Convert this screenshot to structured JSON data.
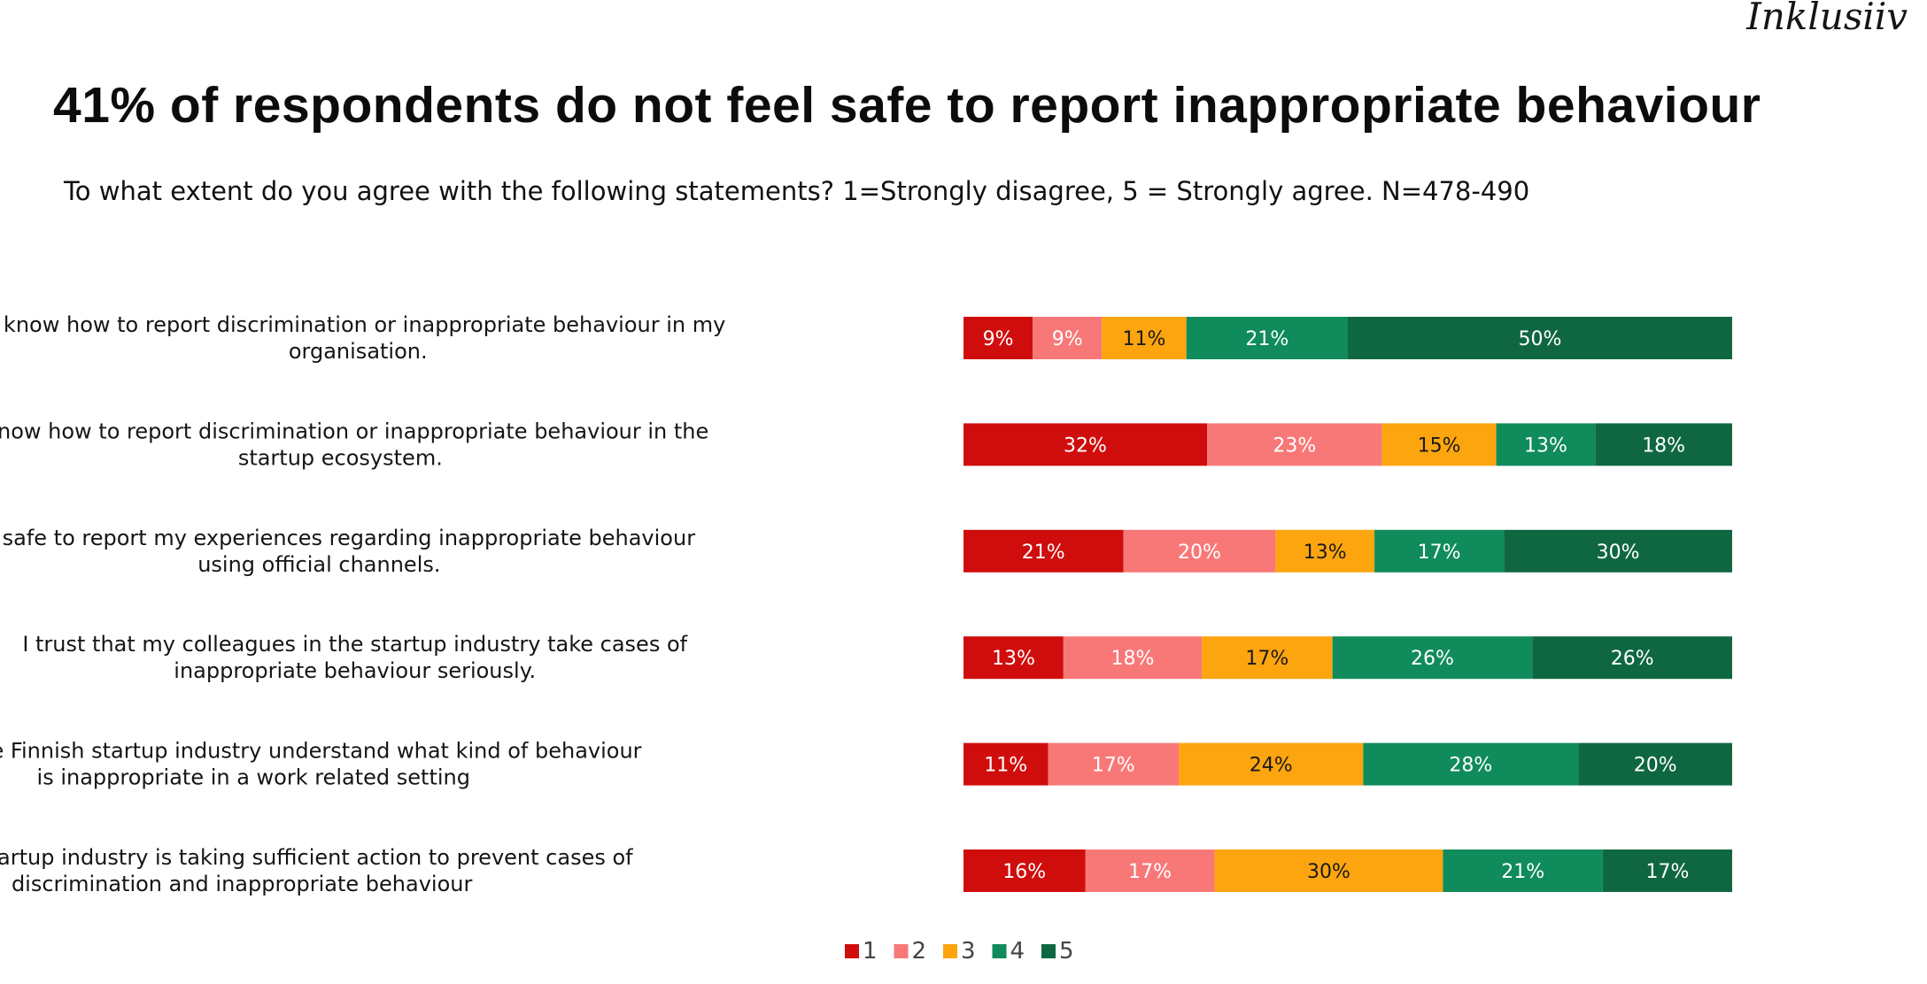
{
  "brand": "Inklusiiv",
  "chart_data": {
    "type": "bar",
    "orientation": "horizontal",
    "stacked": true,
    "title": "41% of respondents do not feel safe to report inappropriate behaviour",
    "subtitle": "To what extent do you agree with the following statements? 1=Strongly disagree, 5 = Strongly agree. N=478-490",
    "xlim": [
      0,
      100
    ],
    "grid": false,
    "legend_position": "bottom-center",
    "categories": [
      [
        "I know how to report discrimination or inappropriate behaviour in my",
        "organisation."
      ],
      [
        "I know how to report discrimination or inappropriate behaviour in the",
        "startup ecosystem."
      ],
      [
        "I feel safe to report my experiences regarding inappropriate behaviour",
        "using official channels."
      ],
      [
        "I trust that my colleagues in the startup industry take cases of",
        "inappropriate behaviour seriously."
      ],
      [
        "People in the Finnish startup industry understand what kind of behaviour",
        "is inappropriate in a work related setting"
      ],
      [
        "The Finnish startup industry is taking sufficient action to prevent cases of",
        "discrimination and inappropriate behaviour"
      ]
    ],
    "series": [
      {
        "name": "1",
        "color": "#d00d0d",
        "label_color": "#ffffff",
        "values": [
          9,
          32,
          21,
          13,
          11,
          16
        ],
        "labels": [
          "9%",
          "32%",
          "21%",
          "13%",
          "11%",
          "16%"
        ]
      },
      {
        "name": "2",
        "color": "#f87878",
        "label_color": "#ffffff",
        "values": [
          9,
          23,
          20,
          18,
          17,
          17
        ],
        "labels": [
          "9%",
          "23%",
          "20%",
          "18%",
          "17%",
          "17%"
        ]
      },
      {
        "name": "3",
        "color": "#fca50f",
        "label_color": "#1a1a1a",
        "values": [
          11,
          15,
          13,
          17,
          24,
          30
        ],
        "labels": [
          "11%",
          "15%",
          "13%",
          "17%",
          "24%",
          "30%"
        ]
      },
      {
        "name": "4",
        "color": "#108b5b",
        "label_color": "#ffffff",
        "values": [
          21,
          13,
          17,
          26,
          28,
          21
        ],
        "labels": [
          "21%",
          "13%",
          "17%",
          "26%",
          "28%",
          "21%"
        ]
      },
      {
        "name": "5",
        "color": "#0f6742",
        "label_color": "#ffffff",
        "values": [
          50,
          18,
          30,
          26,
          20,
          17
        ],
        "labels": [
          "50%",
          "18%",
          "30%",
          "26%",
          "20%",
          "17%"
        ]
      }
    ]
  }
}
